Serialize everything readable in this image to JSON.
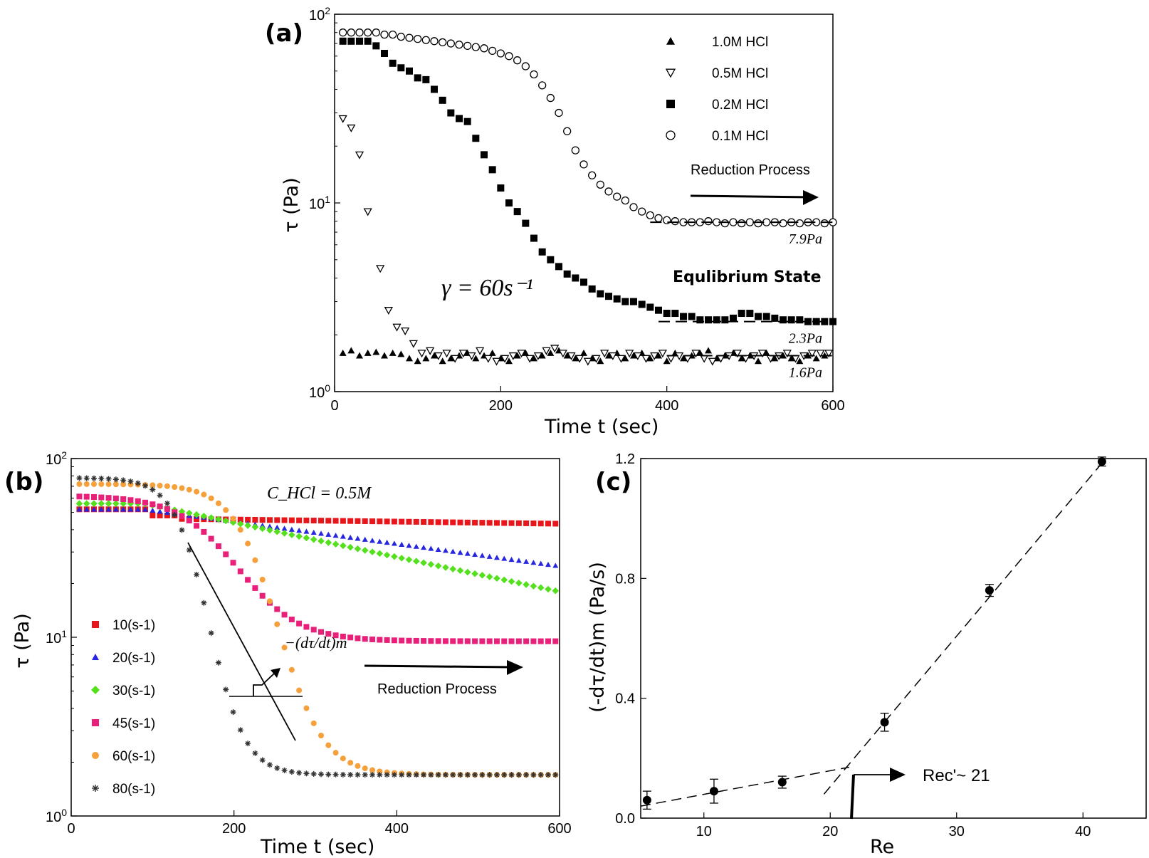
{
  "chart_data": [
    {
      "panel": "(a)",
      "type": "scatter",
      "xlabel": "Time t (sec)",
      "ylabel": "τ (Pa)",
      "xlim": [
        0,
        600
      ],
      "ylim_log": [
        1,
        100
      ],
      "xticks": [
        "0",
        "200",
        "400",
        "600"
      ],
      "yticks": [
        {
          "base": "10",
          "exp": "0"
        },
        {
          "base": "10",
          "exp": "1"
        },
        {
          "base": "10",
          "exp": "2"
        }
      ],
      "series": [
        {
          "name": "1.0M HCl",
          "marker": "triangle-filled",
          "x": [
            10,
            20,
            30,
            40,
            50,
            60,
            70,
            80,
            90,
            100,
            110,
            120,
            130,
            140,
            150,
            160,
            170,
            180,
            190,
            200,
            210,
            220,
            230,
            240,
            250,
            260,
            270,
            280,
            290,
            300,
            310,
            320,
            330,
            340,
            350,
            360,
            370,
            380,
            390,
            400,
            410,
            420,
            430,
            440,
            450,
            460,
            470,
            480,
            490,
            500,
            510,
            520,
            530,
            540,
            550,
            560,
            570,
            580,
            590
          ],
          "y": [
            1.6,
            1.65,
            1.55,
            1.6,
            1.62,
            1.55,
            1.6,
            1.58,
            1.5,
            1.45,
            1.5,
            1.55,
            1.45,
            1.5,
            1.55,
            1.6,
            1.5,
            1.55,
            1.6,
            1.5,
            1.45,
            1.55,
            1.6,
            1.5,
            1.55,
            1.6,
            1.65,
            1.55,
            1.5,
            1.6,
            1.5,
            1.45,
            1.55,
            1.6,
            1.5,
            1.55,
            1.6,
            1.5,
            1.55,
            1.45,
            1.6,
            1.5,
            1.55,
            1.6,
            1.65,
            1.5,
            1.55,
            1.6,
            1.5,
            1.55,
            1.45,
            1.6,
            1.5,
            1.55,
            1.5,
            1.45,
            1.55,
            1.5,
            1.55
          ]
        },
        {
          "name": "0.5M HCl",
          "marker": "triangle-open-down",
          "x": [
            10,
            20,
            30,
            40,
            55,
            65,
            75,
            85,
            95,
            105,
            115,
            125,
            135,
            145,
            155,
            165,
            175,
            185,
            195,
            205,
            215,
            225,
            235,
            245,
            255,
            265,
            275,
            285,
            295,
            305,
            315,
            325,
            335,
            345,
            355,
            365,
            375,
            385,
            395,
            405,
            415,
            425,
            435,
            445,
            455,
            465,
            475,
            485,
            495,
            505,
            515,
            525,
            535,
            545,
            555,
            565,
            575,
            585,
            595
          ],
          "y": [
            28,
            25,
            18,
            9,
            4.5,
            2.7,
            2.2,
            2.1,
            1.8,
            1.6,
            1.65,
            1.55,
            1.6,
            1.5,
            1.6,
            1.55,
            1.65,
            1.5,
            1.45,
            1.5,
            1.55,
            1.6,
            1.5,
            1.55,
            1.65,
            1.7,
            1.6,
            1.55,
            1.5,
            1.45,
            1.5,
            1.6,
            1.55,
            1.5,
            1.6,
            1.55,
            1.5,
            1.55,
            1.6,
            1.5,
            1.55,
            1.5,
            1.6,
            1.5,
            1.45,
            1.5,
            1.55,
            1.6,
            1.5,
            1.55,
            1.6,
            1.5,
            1.55,
            1.6,
            1.5,
            1.55,
            1.6,
            1.6,
            1.6
          ]
        },
        {
          "name": "0.2M HCl",
          "marker": "square-filled",
          "x": [
            10,
            20,
            30,
            40,
            50,
            60,
            70,
            80,
            90,
            100,
            110,
            120,
            130,
            140,
            150,
            160,
            170,
            180,
            190,
            200,
            210,
            220,
            230,
            240,
            250,
            260,
            270,
            280,
            290,
            300,
            310,
            320,
            330,
            340,
            350,
            360,
            370,
            380,
            390,
            400,
            410,
            420,
            430,
            440,
            450,
            460,
            470,
            480,
            490,
            500,
            510,
            520,
            530,
            540,
            550,
            560,
            570,
            580,
            590,
            600
          ],
          "y": [
            72,
            72,
            72,
            72,
            68,
            62,
            55,
            52,
            50,
            46,
            45,
            40,
            35,
            30,
            28,
            27,
            22,
            18,
            15,
            12,
            10,
            9,
            7.8,
            6.5,
            5.5,
            5.0,
            4.6,
            4.2,
            4.0,
            3.8,
            3.5,
            3.3,
            3.2,
            3.1,
            3.0,
            3.0,
            2.9,
            2.8,
            2.7,
            2.6,
            2.6,
            2.5,
            2.5,
            2.4,
            2.4,
            2.4,
            2.4,
            2.45,
            2.6,
            2.6,
            2.5,
            2.5,
            2.45,
            2.4,
            2.4,
            2.4,
            2.35,
            2.35,
            2.35,
            2.35
          ]
        },
        {
          "name": "0.1M HCl",
          "marker": "circle-open",
          "x": [
            10,
            20,
            30,
            40,
            50,
            60,
            70,
            80,
            90,
            100,
            110,
            120,
            130,
            140,
            150,
            160,
            170,
            180,
            190,
            200,
            210,
            220,
            230,
            240,
            250,
            260,
            270,
            280,
            290,
            300,
            310,
            320,
            330,
            340,
            350,
            360,
            370,
            380,
            390,
            400,
            410,
            420,
            430,
            440,
            450,
            460,
            470,
            480,
            490,
            500,
            510,
            520,
            530,
            540,
            550,
            560,
            570,
            580,
            590,
            600
          ],
          "y": [
            80,
            80,
            80,
            80,
            80,
            78,
            78,
            76,
            75,
            74,
            73,
            72,
            71,
            70,
            69,
            68,
            67,
            66,
            64,
            62,
            60,
            57,
            53,
            48,
            42,
            36,
            30,
            24,
            19,
            16,
            14,
            12.5,
            11.5,
            10.8,
            10.3,
            9.5,
            9.0,
            8.6,
            8.3,
            8.1,
            8.0,
            7.9,
            7.9,
            7.9,
            8.0,
            7.9,
            7.8,
            7.9,
            7.8,
            7.9,
            7.8,
            7.9,
            7.9,
            7.8,
            7.9,
            7.8,
            7.9,
            7.9,
            7.8,
            7.9
          ]
        }
      ],
      "guides": [
        {
          "label": "7.9Pa",
          "y": 7.9,
          "x_from": 380,
          "x_to": 600
        },
        {
          "label": "2.3Pa",
          "y": 2.35,
          "x_from": 390,
          "x_to": 600
        },
        {
          "label": "1.6Pa",
          "y": 1.55,
          "x_from": 400,
          "x_to": 600
        }
      ],
      "annotations": {
        "arrow_text": "Reduction Process",
        "state_text": "Equlibrium State",
        "shear_rate": "γ = 60s⁻¹"
      }
    },
    {
      "panel": "(b)",
      "type": "scatter",
      "xlabel": "Time t (sec)",
      "ylabel": "τ (Pa)",
      "xlim": [
        0,
        600
      ],
      "ylim_log": [
        1,
        100
      ],
      "xticks": [
        "0",
        "200",
        "400",
        "600"
      ],
      "yticks": [
        {
          "base": "10",
          "exp": "0"
        },
        {
          "base": "10",
          "exp": "1"
        },
        {
          "base": "10",
          "exp": "2"
        }
      ],
      "title": "C_HCl = 0.5M",
      "series": [
        {
          "name": "10(s-1)",
          "color": "#e8151b",
          "marker": "square",
          "start": 52,
          "end": 43,
          "dip_at": 80
        },
        {
          "name": "20(s-1)",
          "color": "#2626e0",
          "marker": "triangle",
          "start": 52,
          "end": 25
        },
        {
          "name": "30(s-1)",
          "color": "#55e01e",
          "marker": "diamond",
          "start": 56,
          "end": 18
        },
        {
          "name": "45(s-1)",
          "color": "#e8207a",
          "marker": "square",
          "start": 62,
          "end": 9.5
        },
        {
          "name": "60(s-1)",
          "color": "#f5a03b",
          "marker": "circle",
          "start": 72,
          "end": 1.7
        },
        {
          "name": "80(s-1)",
          "color": "#333333",
          "marker": "asterisk",
          "start": 78,
          "end": 1.7
        }
      ],
      "annotations": {
        "arrow_text": "Reduction Process",
        "slope_label": "−(dτ/dt)m"
      }
    },
    {
      "panel": "(c)",
      "type": "scatter",
      "xlabel": "Re",
      "ylabel": "(-dτ/dt)m (Pa/s)",
      "xlim": [
        5,
        45
      ],
      "ylim": [
        0.0,
        1.2
      ],
      "xticks": [
        "10",
        "20",
        "30",
        "40"
      ],
      "yticks": [
        "0.0",
        "0.4",
        "0.8",
        "1.2"
      ],
      "x": [
        5.5,
        10.8,
        16.2,
        24.3,
        32.6,
        41.5
      ],
      "y": [
        0.06,
        0.09,
        0.12,
        0.32,
        0.76,
        1.19
      ],
      "err": [
        0.03,
        0.04,
        0.02,
        0.03,
        0.02,
        0.015
      ],
      "fits": [
        {
          "x": [
            5,
            21.5
          ],
          "y": [
            0.04,
            0.17
          ]
        },
        {
          "x": [
            19.5,
            41.8
          ],
          "y": [
            0.08,
            1.2
          ]
        }
      ],
      "annotations": {
        "critical_label": "Rec'~ 21",
        "critical_re": 21
      }
    }
  ]
}
